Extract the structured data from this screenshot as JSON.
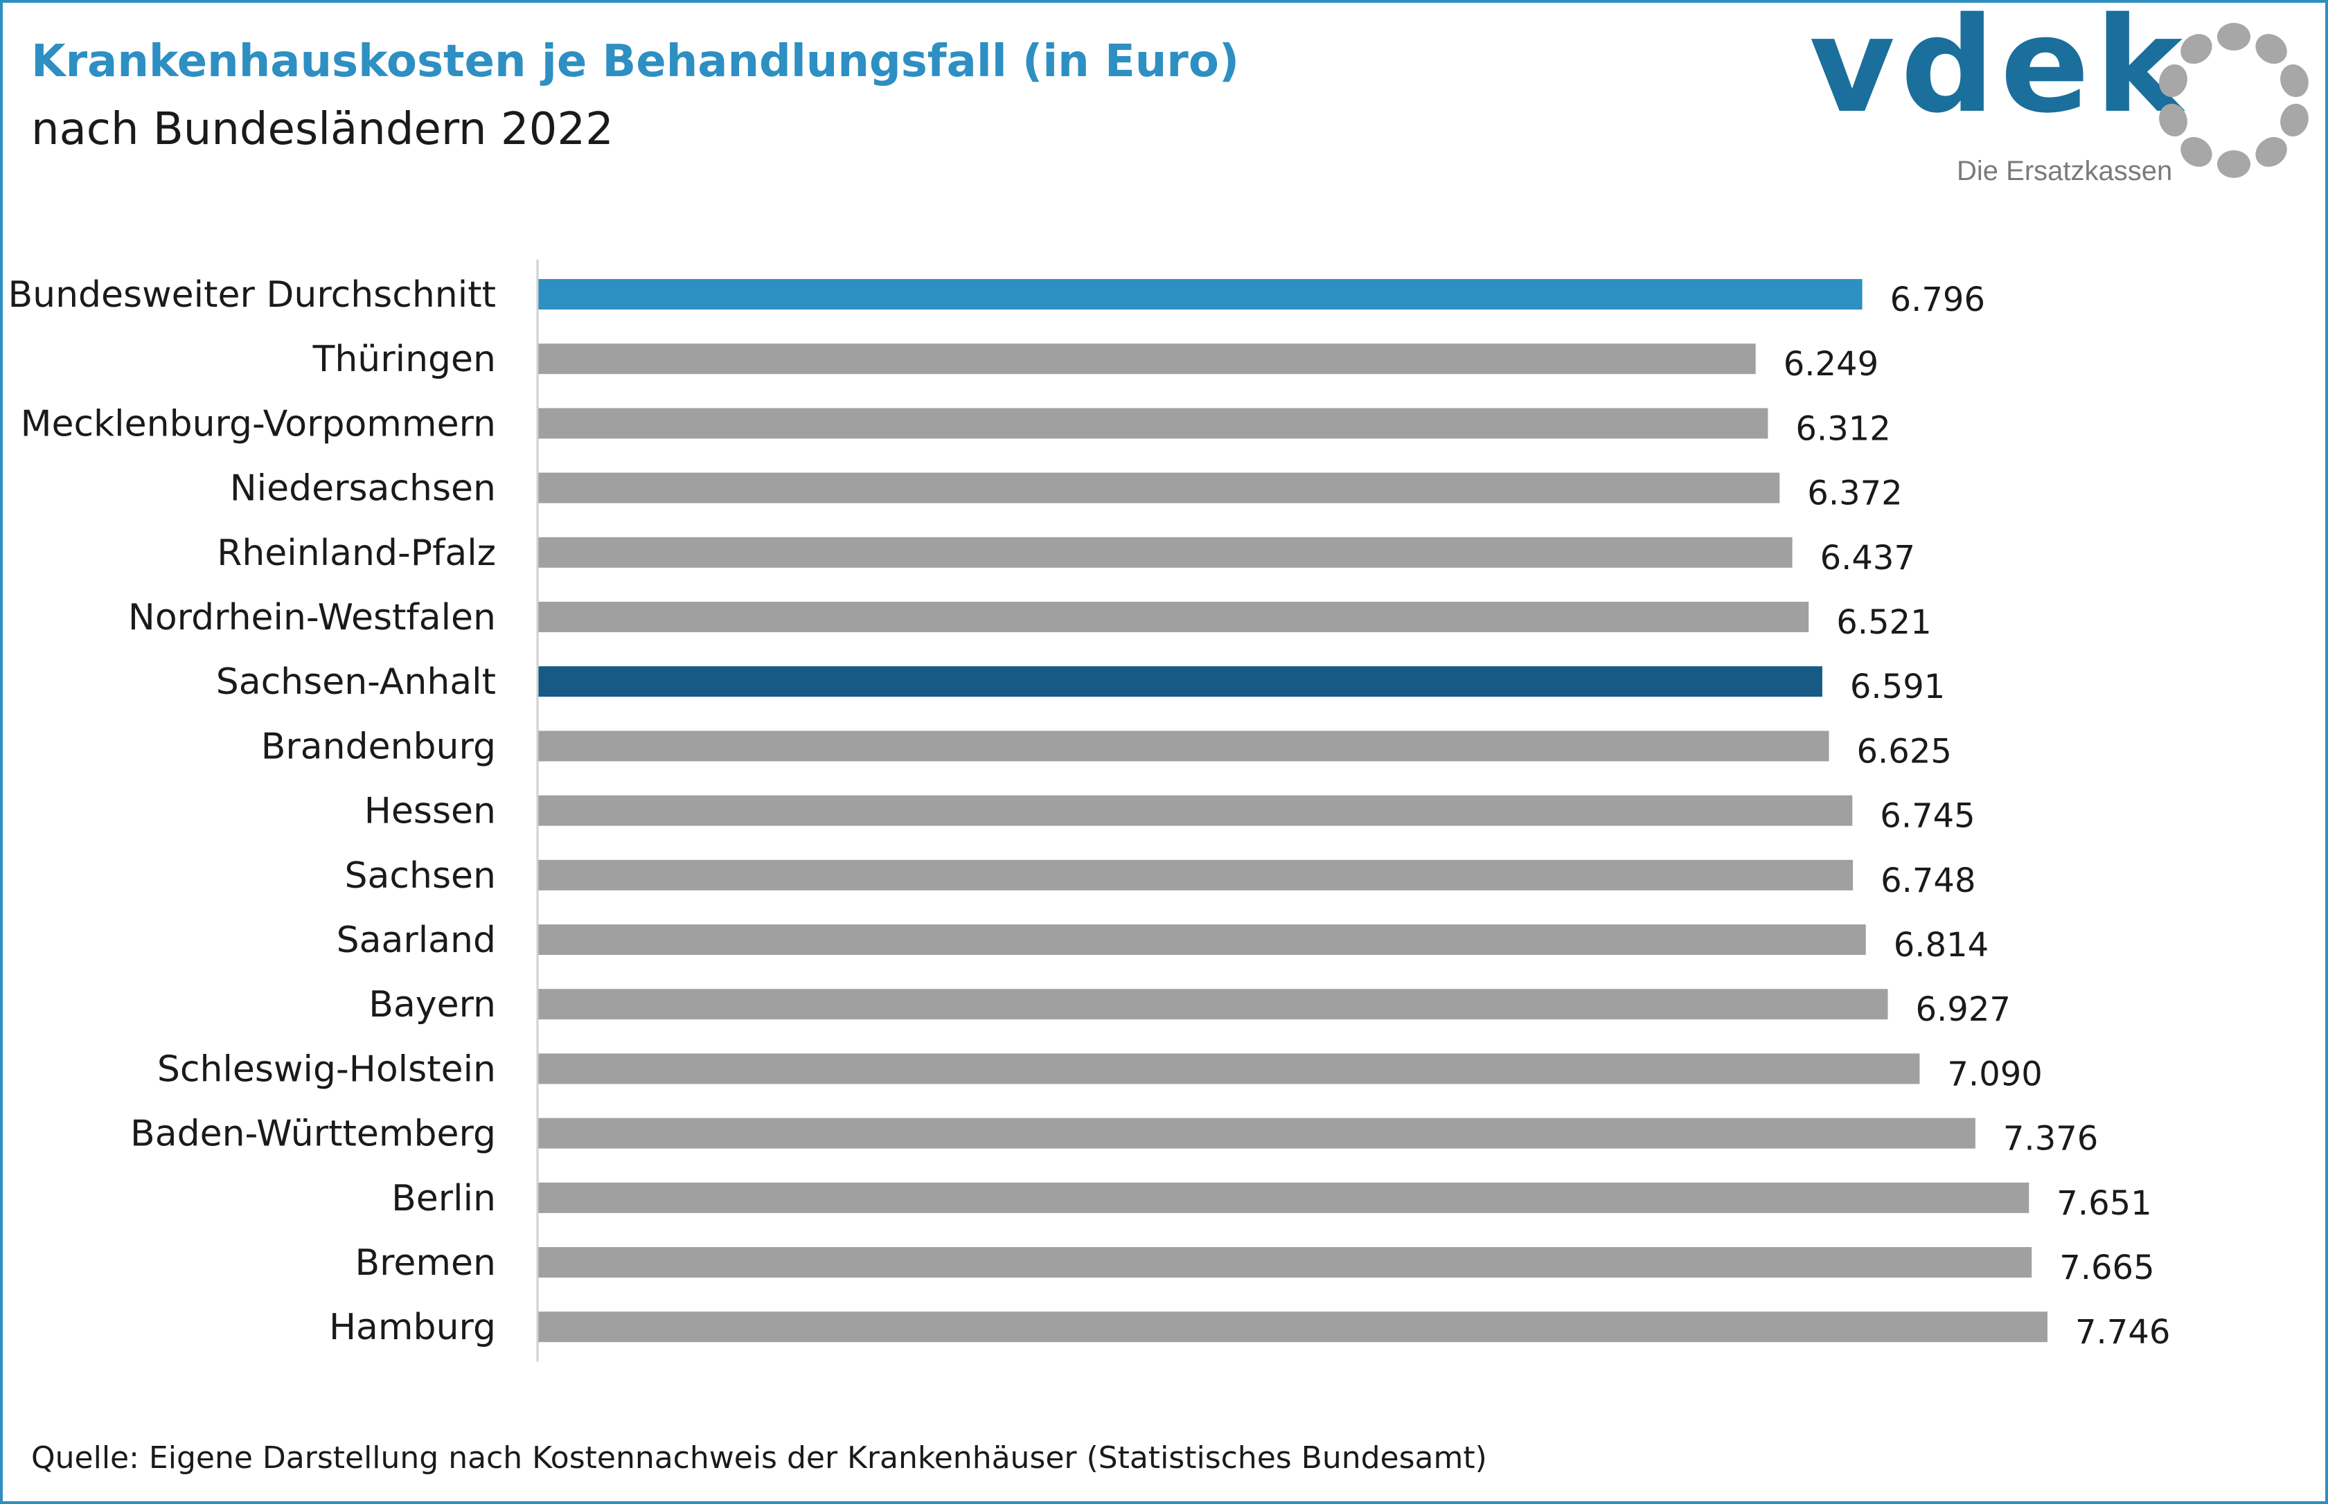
{
  "header": {
    "title": "Krankenhauskosten je Behandlungsfall (in Euro)",
    "subtitle": "nach Bundesländern 2022"
  },
  "logo": {
    "name": "vdek",
    "tagline": "Die Ersatzkassen",
    "color": "#1a6f9c",
    "ring_color": "#a7a7a7"
  },
  "footer": {
    "source": "Quelle: Eigene Darstellung nach Kostennachweis der Krankenhäuser (Statistisches Bundesamt)"
  },
  "colors": {
    "title": "#2d8fc2",
    "bar_default": "#a0a0a0",
    "bar_average": "#2d8fc2",
    "bar_highlight": "#175a84",
    "frame": "#2f8ec0"
  },
  "chart_data": {
    "type": "bar",
    "orientation": "horizontal",
    "categories": [
      "Bundesweiter Durchschnitt",
      "Thüringen",
      "Mecklenburg-Vorpommern",
      "Niedersachsen",
      "Rheinland-Pfalz",
      "Nordrhein-Westfalen",
      "Sachsen-Anhalt",
      "Brandenburg",
      "Hessen",
      "Sachsen",
      "Saarland",
      "Bayern",
      "Schleswig-Holstein",
      "Baden-Württemberg",
      "Berlin",
      "Bremen",
      "Hamburg"
    ],
    "values": [
      6796,
      6249,
      6312,
      6372,
      6437,
      6521,
      6591,
      6625,
      6745,
      6748,
      6814,
      6927,
      7090,
      7376,
      7651,
      7665,
      7746
    ],
    "value_labels": [
      "6.796",
      "6.249",
      "6.312",
      "6.372",
      "6.437",
      "6.521",
      "6.591",
      "6.625",
      "6.745",
      "6.748",
      "6.814",
      "6.927",
      "7.090",
      "7.376",
      "7.651",
      "7.665",
      "7.746"
    ],
    "bar_colors": [
      "#2d8fc2",
      "#a0a0a0",
      "#a0a0a0",
      "#a0a0a0",
      "#a0a0a0",
      "#a0a0a0",
      "#175a84",
      "#a0a0a0",
      "#a0a0a0",
      "#a0a0a0",
      "#a0a0a0",
      "#a0a0a0",
      "#a0a0a0",
      "#a0a0a0",
      "#a0a0a0",
      "#a0a0a0",
      "#a0a0a0"
    ],
    "xlim": [
      0,
      7746
    ],
    "grid": false,
    "legend": "none"
  }
}
